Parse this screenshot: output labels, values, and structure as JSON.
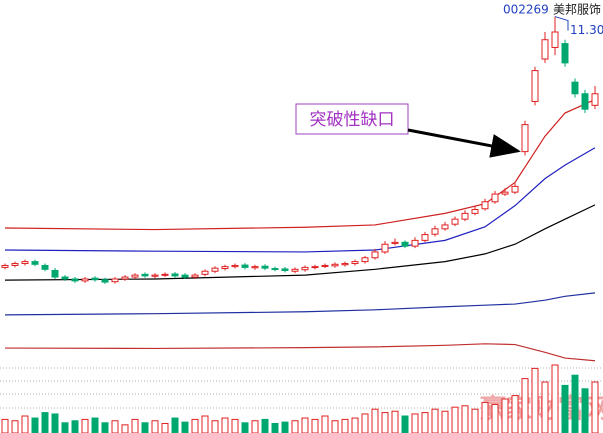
{
  "chart_data": {
    "type": "candlestick",
    "code": "002269",
    "name": "美邦服饰",
    "annotation": "突破性缺口",
    "max_label": "11.30",
    "watermark": "赢家财富网",
    "up_color": "#e02020",
    "down_color": "#00a870",
    "ylim": [
      2.4,
      11.6
    ],
    "volume_lim": [
      0,
      100
    ],
    "open": [
      4.8,
      4.85,
      4.9,
      4.95,
      4.85,
      4.72,
      4.55,
      4.5,
      4.45,
      4.52,
      4.48,
      4.43,
      4.5,
      4.55,
      4.62,
      4.57,
      4.6,
      4.63,
      4.6,
      4.55,
      4.62,
      4.7,
      4.77,
      4.82,
      4.86,
      4.79,
      4.83,
      4.77,
      4.76,
      4.7,
      4.74,
      4.8,
      4.83,
      4.84,
      4.87,
      4.9,
      4.95,
      5.05,
      5.2,
      5.42,
      5.45,
      5.35,
      5.5,
      5.66,
      5.8,
      5.92,
      6.05,
      6.2,
      6.32,
      6.5,
      6.7,
      6.75,
      7.8,
      9.1,
      10.2,
      10.5,
      10.6,
      9.6,
      9.3,
      9.0
    ],
    "high": [
      4.9,
      4.95,
      5.0,
      5.0,
      4.9,
      4.78,
      4.6,
      4.55,
      4.55,
      4.57,
      4.53,
      4.55,
      4.6,
      4.65,
      4.67,
      4.65,
      4.67,
      4.68,
      4.65,
      4.65,
      4.75,
      4.83,
      4.87,
      4.9,
      4.91,
      4.87,
      4.88,
      4.82,
      4.81,
      4.8,
      4.85,
      4.87,
      4.9,
      4.93,
      4.95,
      5.0,
      5.1,
      5.28,
      5.48,
      5.55,
      5.5,
      5.58,
      5.72,
      5.88,
      5.98,
      6.12,
      6.28,
      6.4,
      6.58,
      6.78,
      6.85,
      6.98,
      8.6,
      10.0,
      10.9,
      11.3,
      10.7,
      9.7,
      9.4,
      9.5
    ],
    "low": [
      4.75,
      4.8,
      4.85,
      4.83,
      4.7,
      4.5,
      4.45,
      4.4,
      4.4,
      4.43,
      4.37,
      4.38,
      4.45,
      4.5,
      4.53,
      4.52,
      4.55,
      4.53,
      4.5,
      4.5,
      4.57,
      4.65,
      4.72,
      4.77,
      4.75,
      4.74,
      4.73,
      4.7,
      4.67,
      4.65,
      4.69,
      4.75,
      4.78,
      4.79,
      4.82,
      4.85,
      4.9,
      5.0,
      5.15,
      5.37,
      5.3,
      5.3,
      5.45,
      5.6,
      5.75,
      5.87,
      6.0,
      6.15,
      6.27,
      6.45,
      6.65,
      6.7,
      7.7,
      9.0,
      10.1,
      10.3,
      10.0,
      9.2,
      8.8,
      8.9
    ],
    "close": [
      4.85,
      4.9,
      4.95,
      4.88,
      4.75,
      4.55,
      4.5,
      4.45,
      4.5,
      4.48,
      4.42,
      4.5,
      4.55,
      4.6,
      4.58,
      4.6,
      4.62,
      4.58,
      4.55,
      4.6,
      4.7,
      4.78,
      4.82,
      4.85,
      4.8,
      4.82,
      4.78,
      4.75,
      4.72,
      4.75,
      4.8,
      4.82,
      4.85,
      4.88,
      4.9,
      4.95,
      5.05,
      5.2,
      5.4,
      5.45,
      5.35,
      5.5,
      5.65,
      5.8,
      5.9,
      6.05,
      6.2,
      6.3,
      6.5,
      6.7,
      6.75,
      6.9,
      8.5,
      9.9,
      10.7,
      10.9,
      10.1,
      9.3,
      8.9,
      9.3
    ],
    "volume": [
      20,
      18,
      25,
      22,
      30,
      28,
      15,
      18,
      20,
      22,
      15,
      18,
      12,
      20,
      15,
      18,
      14,
      22,
      16,
      20,
      25,
      18,
      22,
      20,
      15,
      18,
      20,
      14,
      16,
      18,
      22,
      20,
      25,
      18,
      20,
      22,
      28,
      35,
      30,
      32,
      25,
      28,
      30,
      35,
      32,
      38,
      40,
      35,
      45,
      42,
      50,
      55,
      80,
      95,
      75,
      100,
      70,
      85,
      65,
      75
    ],
    "lines": [
      {
        "color": "#d02020",
        "x": [
          0,
          15,
          30,
          37,
          44,
          48,
          51,
          54,
          56,
          59
        ],
        "values": [
          5.82,
          5.78,
          5.84,
          5.9,
          6.2,
          6.45,
          7.0,
          8.2,
          8.8,
          9.15
        ]
      },
      {
        "color": "#2020c0",
        "x": [
          0,
          15,
          30,
          37,
          44,
          48,
          51,
          54,
          56,
          59
        ],
        "values": [
          5.25,
          5.22,
          5.2,
          5.25,
          5.5,
          5.85,
          6.4,
          7.1,
          7.45,
          7.9
        ]
      },
      {
        "color": "#000000",
        "x": [
          0,
          15,
          30,
          37,
          44,
          48,
          51,
          54,
          56,
          59
        ],
        "values": [
          4.47,
          4.5,
          4.6,
          4.75,
          4.95,
          5.15,
          5.4,
          5.8,
          6.05,
          6.42
        ]
      },
      {
        "color": "#2030a0",
        "x": [
          0,
          15,
          30,
          37,
          44,
          48,
          51,
          54,
          56,
          59
        ],
        "values": [
          3.57,
          3.6,
          3.65,
          3.7,
          3.78,
          3.82,
          3.85,
          3.95,
          4.05,
          4.14
        ]
      },
      {
        "color": "#c03030",
        "x": [
          0,
          15,
          30,
          37,
          44,
          48,
          51,
          54,
          56,
          59
        ],
        "values": [
          2.71,
          2.7,
          2.72,
          2.74,
          2.78,
          2.82,
          2.8,
          2.6,
          2.45,
          2.38
        ]
      }
    ]
  }
}
